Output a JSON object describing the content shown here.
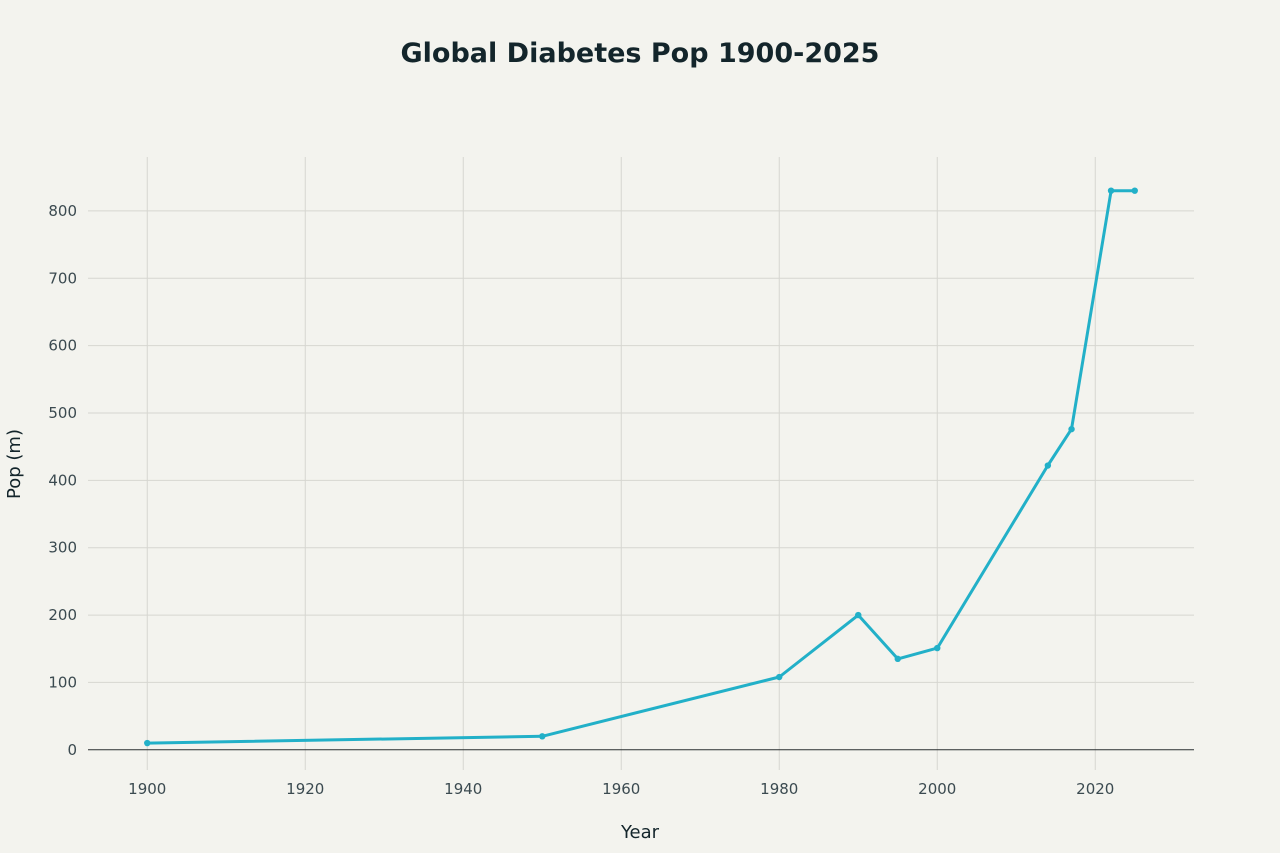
{
  "chart_data": {
    "type": "line",
    "title": "Global Diabetes Pop 1900-2025",
    "xlabel": "Year",
    "ylabel": "Pop (m)",
    "xlim": [
      1892.5,
      2032.5
    ],
    "ylim": [
      -30,
      880
    ],
    "xticks": [
      1900,
      1920,
      1940,
      1960,
      1980,
      2000,
      2020
    ],
    "yticks": [
      0,
      100,
      200,
      300,
      400,
      500,
      600,
      700,
      800
    ],
    "grid": true,
    "legend": "none",
    "series": [
      {
        "name": "Global Diabetes Pop",
        "color": "#22b0c8",
        "x": [
          1900,
          1950,
          1980,
          1990,
          1995,
          2000,
          2014,
          2017,
          2022,
          2025
        ],
        "y": [
          10,
          20,
          108,
          200,
          135,
          151,
          422,
          476,
          830,
          830
        ]
      }
    ]
  }
}
